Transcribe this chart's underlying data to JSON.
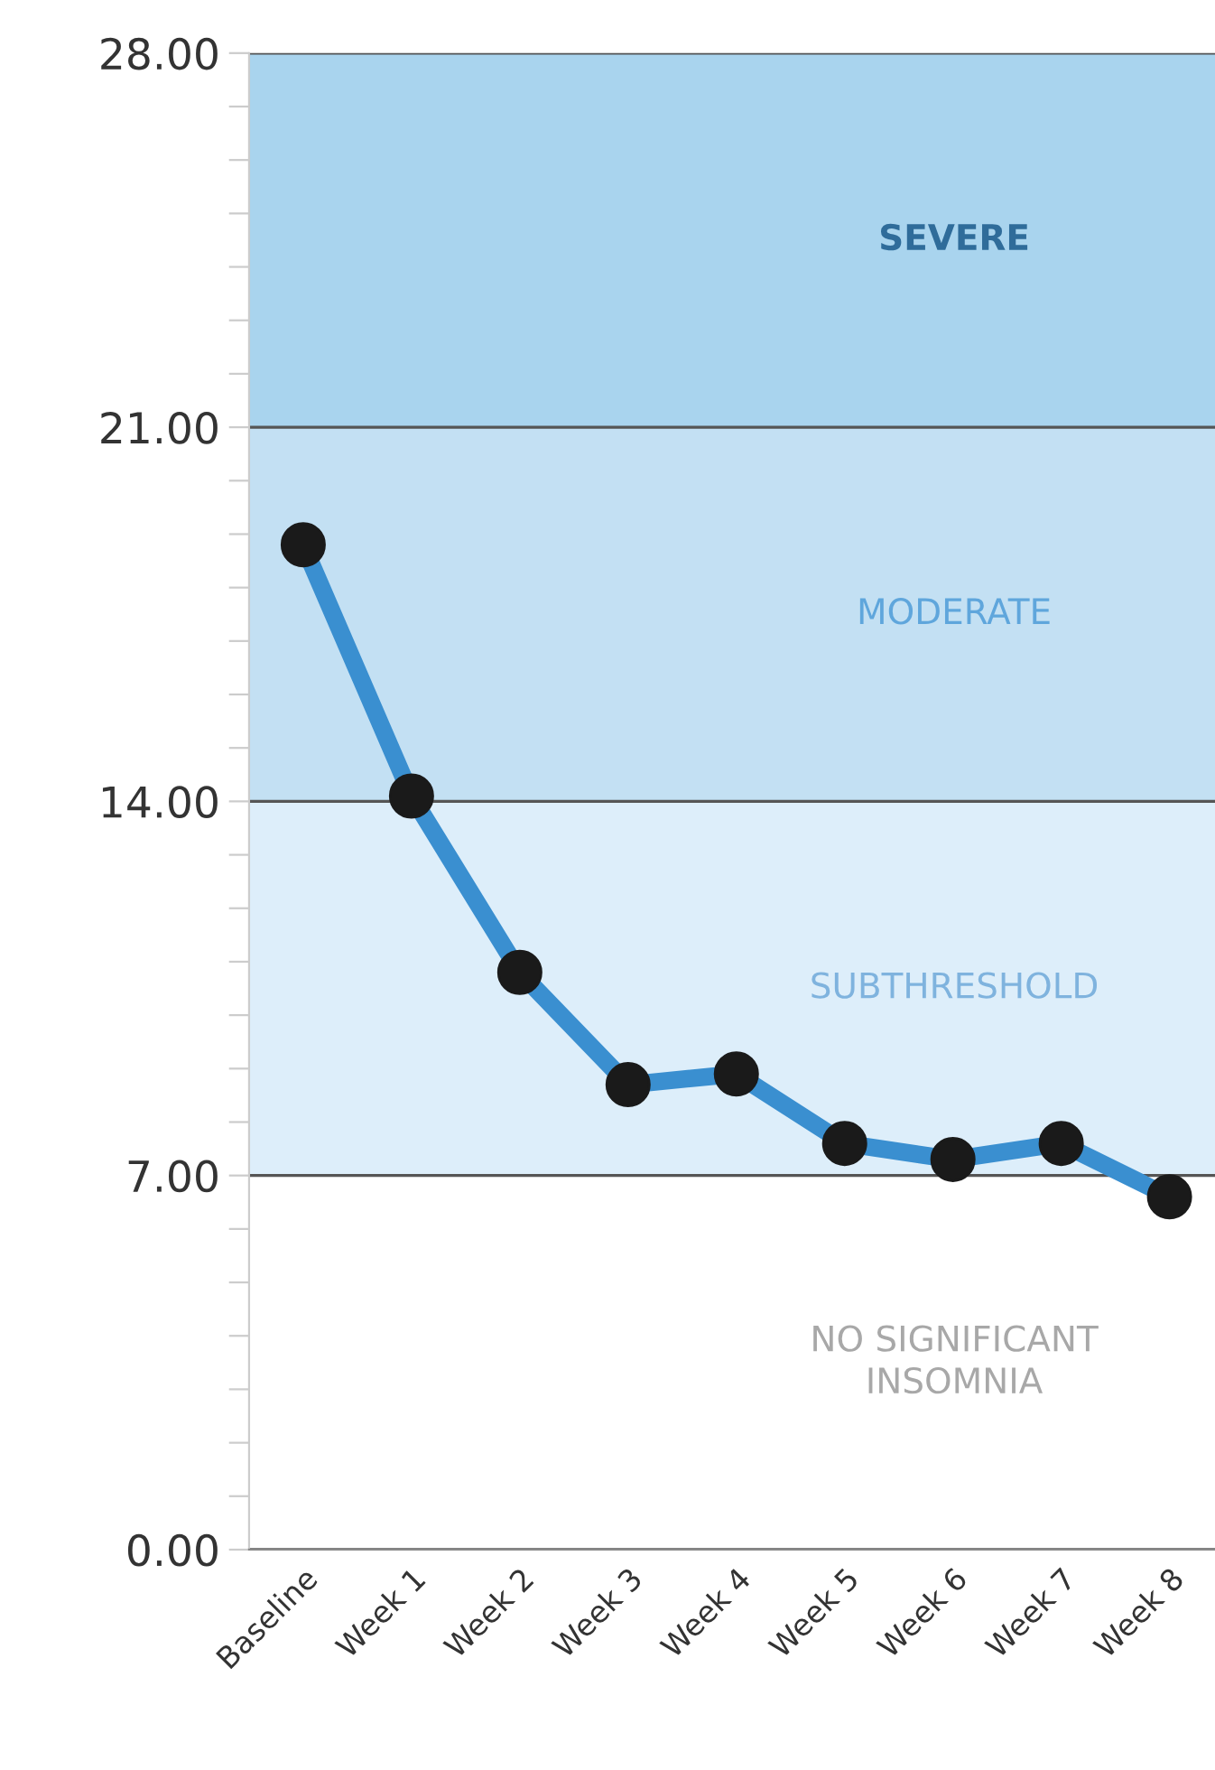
{
  "chart_data": {
    "type": "line",
    "categories": [
      "Baseline",
      "Week 1",
      "Week 2",
      "Week 3",
      "Week 4",
      "Week 5",
      "Week 6",
      "Week 7",
      "Week 8"
    ],
    "series": [
      {
        "color": "#3a8fd0",
        "values": [
          18.8,
          14.1,
          10.8,
          8.7,
          8.9,
          7.6,
          7.3,
          7.6,
          6.6
        ]
      }
    ],
    "marker": "circle",
    "line_style": "solid",
    "ylim": [
      0,
      28
    ],
    "yticks": [
      {
        "value": 0,
        "label": "0.00"
      },
      {
        "value": 1,
        "label": null
      },
      {
        "value": 2,
        "label": null
      },
      {
        "value": 3,
        "label": null
      },
      {
        "value": 4,
        "label": null
      },
      {
        "value": 5,
        "label": null
      },
      {
        "value": 6,
        "label": null
      },
      {
        "value": 7,
        "label": "7.00"
      },
      {
        "value": 8,
        "label": null
      },
      {
        "value": 9,
        "label": null
      },
      {
        "value": 10,
        "label": null
      },
      {
        "value": 11,
        "label": null
      },
      {
        "value": 12,
        "label": null
      },
      {
        "value": 13,
        "label": null
      },
      {
        "value": 14,
        "label": "14.00"
      },
      {
        "value": 15,
        "label": null
      },
      {
        "value": 16,
        "label": null
      },
      {
        "value": 17,
        "label": null
      },
      {
        "value": 18,
        "label": null
      },
      {
        "value": 19,
        "label": null
      },
      {
        "value": 20,
        "label": null
      },
      {
        "value": 21,
        "label": "21.00"
      },
      {
        "value": 22,
        "label": null
      },
      {
        "value": 23,
        "label": null
      },
      {
        "value": 24,
        "label": null
      },
      {
        "value": 25,
        "label": null
      },
      {
        "value": 26,
        "label": null
      },
      {
        "value": 27,
        "label": null
      },
      {
        "value": 28,
        "label": "28.00"
      }
    ],
    "grid": "y",
    "annotations": [
      "NO SIGNIFICANT\nINSOMNIA"
    ],
    "bands": [
      {
        "axis": "y",
        "from": 7,
        "to": 14,
        "label": "SUBTHRESHOLD",
        "color": "#ddeefa"
      },
      {
        "axis": "y",
        "from": 14,
        "to": 21,
        "label": "MODERATE",
        "color": "#c3e0f3"
      },
      {
        "axis": "y",
        "from": 21,
        "to": 28,
        "label": "SEVERE",
        "color": "#a9d4ee"
      }
    ]
  }
}
